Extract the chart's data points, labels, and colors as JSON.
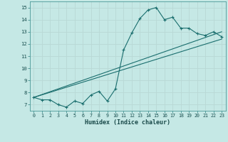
{
  "xlabel": "Humidex (Indice chaleur)",
  "bg_color": "#c5e8e5",
  "grid_color": "#b8d8d5",
  "line_color": "#1a6e6e",
  "xlim": [
    -0.5,
    23.5
  ],
  "ylim": [
    6.5,
    15.5
  ],
  "xticks": [
    0,
    1,
    2,
    3,
    4,
    5,
    6,
    7,
    8,
    9,
    10,
    11,
    12,
    13,
    14,
    15,
    16,
    17,
    18,
    19,
    20,
    21,
    22,
    23
  ],
  "yticks": [
    7,
    8,
    9,
    10,
    11,
    12,
    13,
    14,
    15
  ],
  "series1_x": [
    0,
    1,
    2,
    3,
    4,
    5,
    6,
    7,
    8,
    9,
    10,
    11,
    12,
    13,
    14,
    15,
    16,
    17,
    18,
    19,
    20,
    21,
    22,
    23
  ],
  "series1_y": [
    7.6,
    7.4,
    7.4,
    7.0,
    6.8,
    7.3,
    7.1,
    7.8,
    8.1,
    7.3,
    8.3,
    11.5,
    12.9,
    14.1,
    14.8,
    15.0,
    14.0,
    14.2,
    13.3,
    13.3,
    12.85,
    12.7,
    13.0,
    12.6
  ],
  "series2_x": [
    0,
    23
  ],
  "series2_y": [
    7.6,
    13.0
  ],
  "series3_x": [
    0,
    23
  ],
  "series3_y": [
    7.6,
    12.4
  ]
}
